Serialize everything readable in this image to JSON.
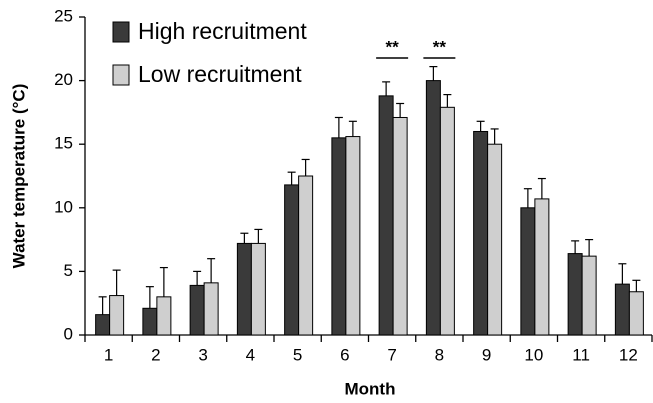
{
  "chart_data": {
    "type": "bar",
    "xlabel": "Month",
    "ylabel": "Water temperature (°C)",
    "categories": [
      "1",
      "2",
      "3",
      "4",
      "5",
      "6",
      "7",
      "8",
      "9",
      "10",
      "11",
      "12"
    ],
    "series": [
      {
        "name": "High recruitment",
        "color": "#3a3a3a",
        "values": [
          1.6,
          2.1,
          3.9,
          7.2,
          11.8,
          15.5,
          18.8,
          20.0,
          16.0,
          10.0,
          6.4,
          4.0
        ],
        "errors": [
          1.4,
          1.7,
          1.1,
          0.8,
          1.0,
          1.6,
          1.1,
          1.1,
          0.8,
          1.5,
          1.0,
          1.6
        ]
      },
      {
        "name": "Low recruitment",
        "color": "#cfcfcf",
        "values": [
          3.1,
          3.0,
          4.1,
          7.2,
          12.5,
          15.6,
          17.1,
          17.9,
          15.0,
          10.7,
          6.2,
          3.4
        ],
        "errors": [
          2.0,
          2.3,
          1.9,
          1.1,
          1.3,
          1.2,
          1.1,
          1.0,
          1.2,
          1.6,
          1.3,
          0.9
        ]
      }
    ],
    "annotations": [
      {
        "text": "**",
        "x": "7"
      },
      {
        "text": "**",
        "x": "8"
      }
    ],
    "ylim": [
      0,
      25
    ],
    "yticks": [
      0,
      5,
      10,
      15,
      20,
      25
    ],
    "legend": "upper left",
    "grid": false
  }
}
